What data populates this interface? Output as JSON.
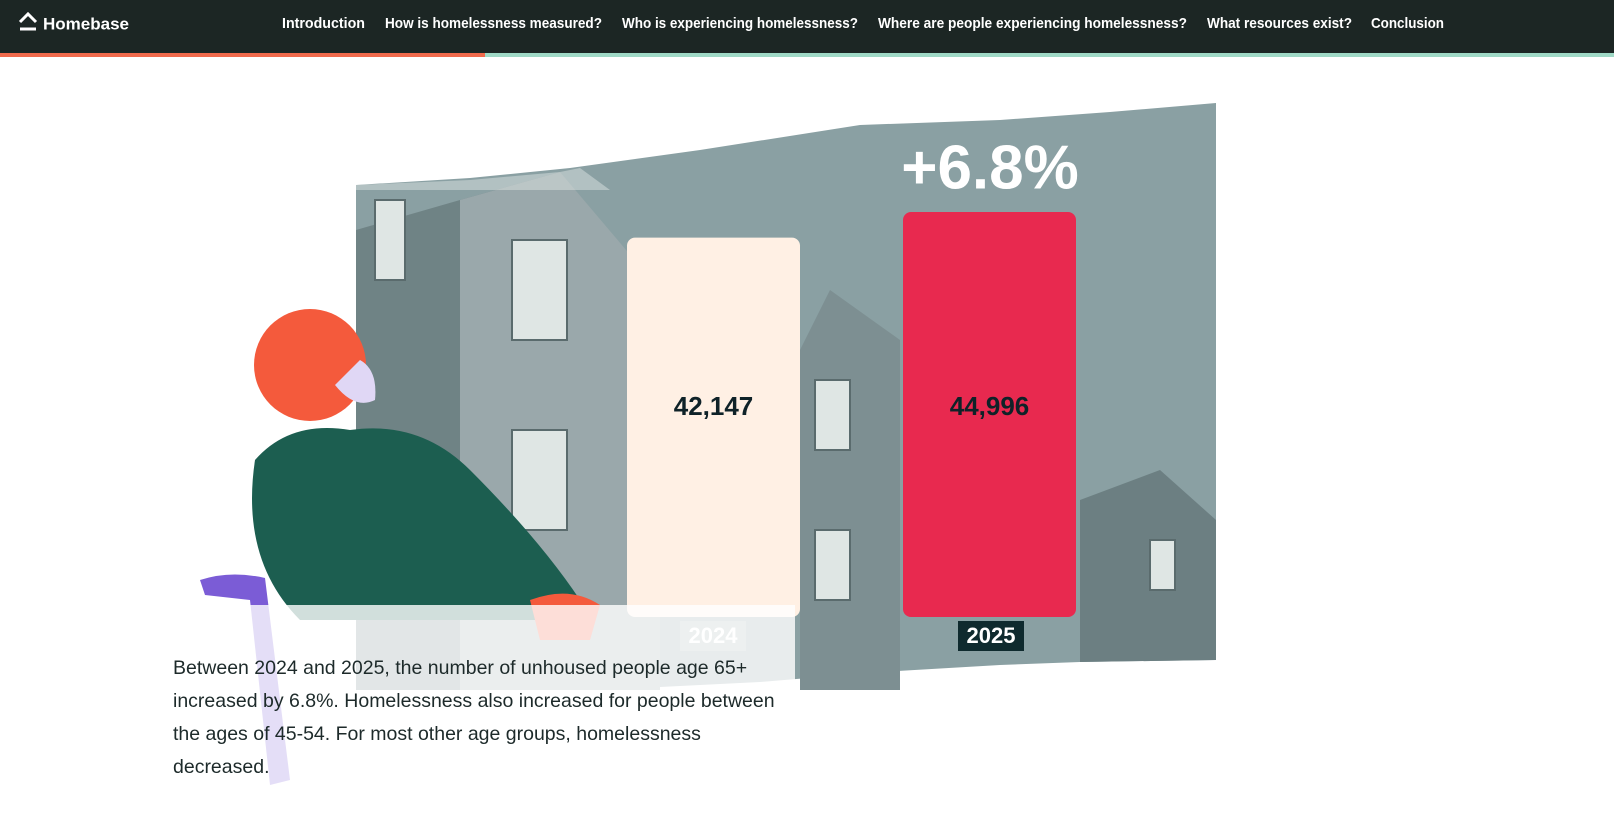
{
  "nav": {
    "logo": "Homebase",
    "links": [
      "Introduction",
      "How is homelessness measured?",
      "Who is experiencing homelessness?",
      "Where are people experiencing homelessness?",
      "What resources exist?",
      "Conclusion"
    ]
  },
  "chart_data": {
    "type": "bar",
    "categories": [
      "2024",
      "2025"
    ],
    "values": [
      42147,
      44996
    ],
    "value_labels": [
      "42,147",
      "44,996"
    ],
    "colors": [
      "#fff0e4",
      "#e8294f"
    ],
    "annotation": "+6.8%"
  },
  "caption": "Between 2024 and 2025, the number of unhoused people age 65+ increased by 6.8%. Homelessness also increased for people between the ages of 45-54. For most other age groups, homelessness decreased."
}
